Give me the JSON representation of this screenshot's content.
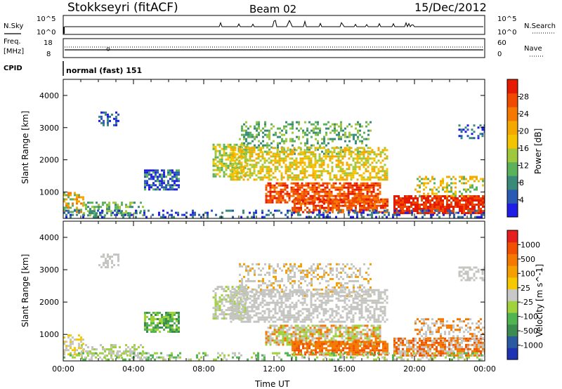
{
  "header": {
    "station": "Stokkseyri (fitACF)",
    "beam": "Beam 02",
    "date": "15/Dec/2012"
  },
  "strips": {
    "nsky": {
      "label": "N.Sky",
      "right_label": "N.Search",
      "ticks_left": [
        "10^5",
        "10^0"
      ],
      "ticks_right": [
        "10^5",
        "10^0"
      ]
    },
    "freq": {
      "label_top": "Freq.",
      "label_bottom": "[MHz]",
      "right_label": "Nave",
      "ticks_left": [
        "18",
        "8"
      ],
      "ticks_right": [
        "60",
        "0"
      ]
    },
    "cpid": {
      "label": "CPID",
      "value": "normal (fast) 151"
    }
  },
  "chart_data": [
    {
      "type": "heatmap",
      "panel": "power",
      "ylabel": "Slant Range [km]",
      "ylim": [
        180,
        4500
      ],
      "y_ticks": [
        1000,
        2000,
        3000,
        4000
      ],
      "x_ticks": [
        "00:00",
        "04:00",
        "08:00",
        "12:00",
        "16:00",
        "20:00",
        "00:00"
      ],
      "colorbar": {
        "label": "Power [dB]",
        "ticks": [
          "4",
          "8",
          "12",
          "16",
          "20",
          "24",
          "28"
        ],
        "colors": [
          "#1e1ee6",
          "#2a5ab4",
          "#3a8a7a",
          "#5bb25b",
          "#a0c83c",
          "#f5c400",
          "#f5a800",
          "#f57800",
          "#f04a00",
          "#e61a00"
        ]
      }
    },
    {
      "type": "heatmap",
      "panel": "velocity",
      "ylabel": "Slant Range [km]",
      "xlabel": "Time UT",
      "ylim": [
        180,
        4500
      ],
      "y_ticks": [
        1000,
        2000,
        3000,
        4000
      ],
      "x_ticks": [
        "00:00",
        "04:00",
        "08:00",
        "12:00",
        "16:00",
        "20:00",
        "00:00"
      ],
      "colorbar": {
        "label": "Velocity [m s^-1]",
        "ticks": [
          "1000",
          "500",
          "100",
          "25",
          "-25",
          "-100",
          "-500",
          "-1000"
        ],
        "colors": [
          "#1e32b4",
          "#2a5aa0",
          "#3c8c50",
          "#50b450",
          "#a0d23c",
          "#c8c8c8",
          "#f5c800",
          "#f5a000",
          "#f57800",
          "#f05000",
          "#e61e1e"
        ]
      }
    }
  ],
  "colors": {
    "gray_scatter": "#c4c4c0",
    "background": "#ffffff"
  }
}
